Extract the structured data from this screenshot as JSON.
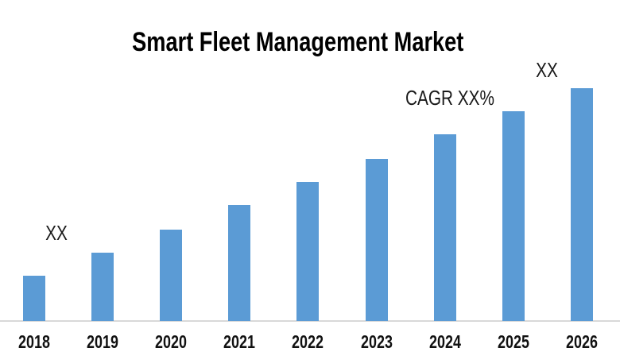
{
  "page": {
    "background": "#FFFFFF"
  },
  "chart_data": {
    "type": "bar",
    "title": "Smart Fleet Management Market",
    "categories": [
      "2018",
      "2019",
      "2020",
      "2021",
      "2022",
      "2023",
      "2024",
      "2025",
      "2026"
    ],
    "values_pct_of_max": [
      19.3,
      29.3,
      39.1,
      49.7,
      59.6,
      69.6,
      80.1,
      90.0,
      100
    ],
    "note": "No numeric axis or value labels are shown; values are XX placeholders. Bar heights estimated as percent of the tallest (2026) bar.",
    "data_labels": [
      {
        "category": "2018",
        "text": "XX"
      },
      {
        "category": "2026",
        "text": "XX"
      }
    ],
    "annotations": [
      {
        "text": "CAGR XX%",
        "position": "above 2024 bar"
      }
    ],
    "bar_color": "#5B9BD5",
    "axis_line_color": "#D9D9D9",
    "text_color": "#000000",
    "grid": false,
    "legend": false,
    "y_axis_visible": false,
    "xlabel": "",
    "ylabel": ""
  }
}
